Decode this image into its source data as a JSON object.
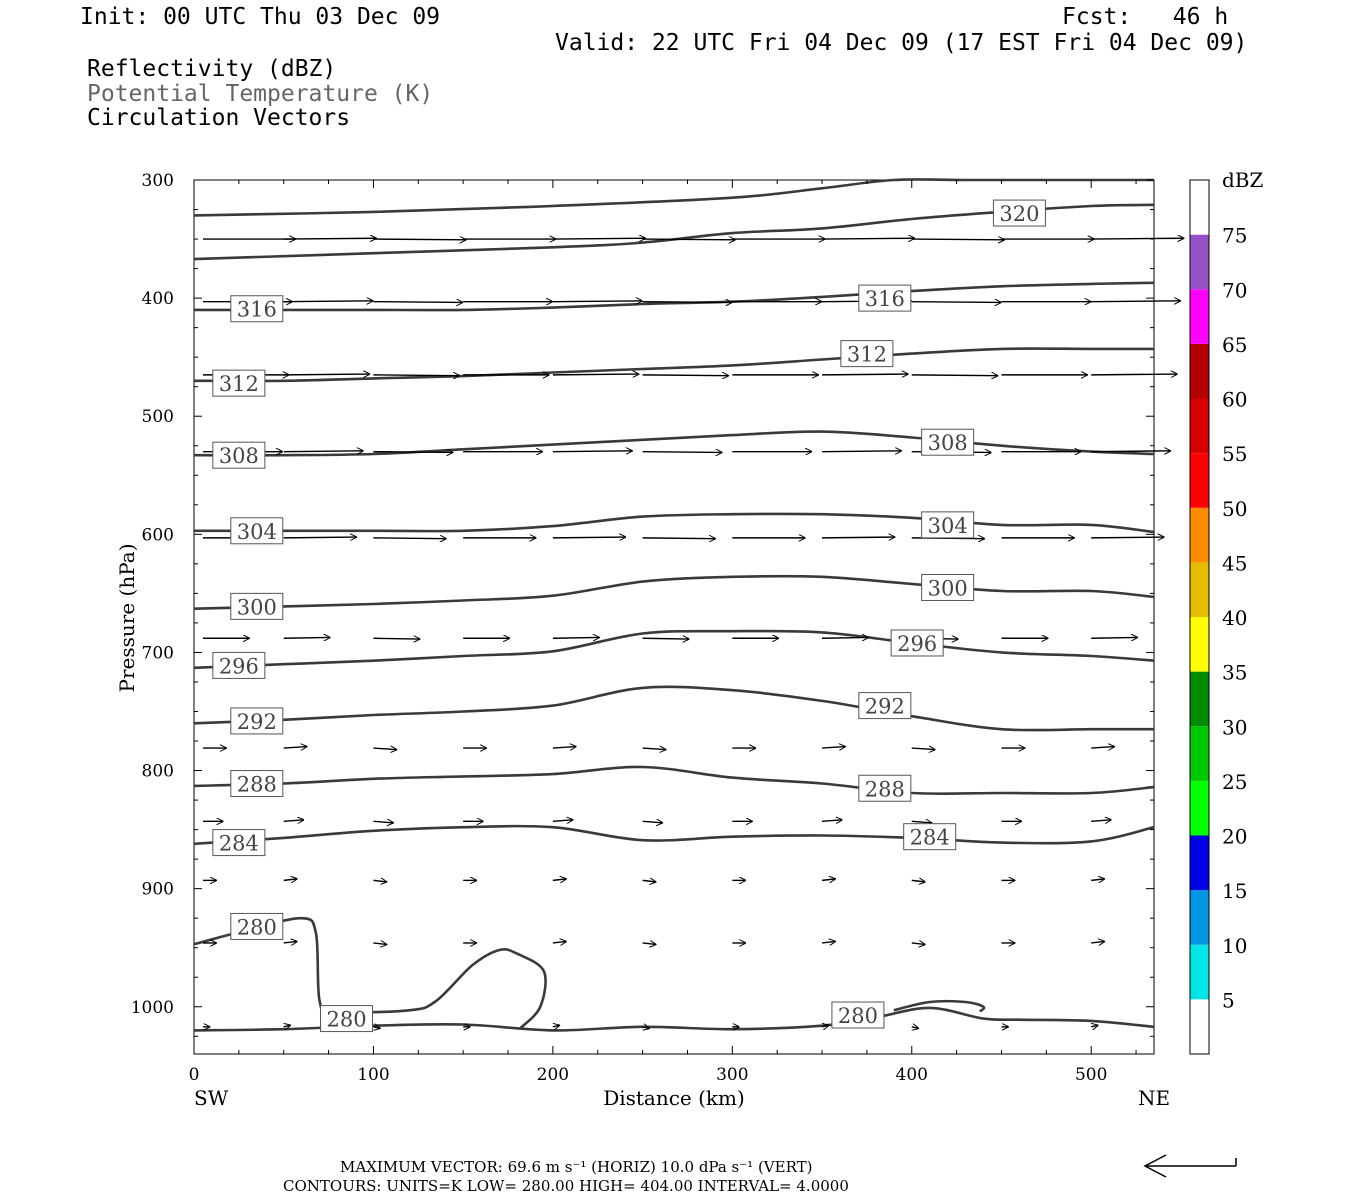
{
  "header": {
    "init": "Init: 00 UTC Thu 03 Dec 09",
    "fcst": "Fcst:   46 h",
    "valid": "Valid: 22 UTC Fri 04 Dec 09 (17 EST Fri 04 Dec 09)",
    "field1": "Reflectivity (dBZ)",
    "field2": "Potential Temperature (K)",
    "field3": "Circulation Vectors"
  },
  "footer": {
    "max_vector": "MAXIMUM VECTOR:  69.6 m s⁻¹ (HORIZ)        10.0 dPa s⁻¹ (VERT)",
    "contours": "CONTOURS:  UNITS=K  LOW=  280.00       HIGH=  404.00       INTERVAL=    4.0000"
  },
  "chart_data": {
    "type": "line",
    "xlabel": "Distance (km)",
    "ylabel": "Pressure (hPa)",
    "x_left_label": "SW",
    "x_right_label": "NE",
    "xlim": [
      0,
      535
    ],
    "ylim": [
      1040,
      300
    ],
    "x_ticks": [
      0,
      100,
      200,
      300,
      400,
      500
    ],
    "y_ticks": [
      300,
      400,
      500,
      600,
      700,
      800,
      900,
      1000
    ],
    "contour_color": "#3a3a3a",
    "colorbar": {
      "title": "dBZ",
      "labels": [
        "5",
        "10",
        "15",
        "20",
        "25",
        "30",
        "35",
        "40",
        "45",
        "50",
        "55",
        "60",
        "65",
        "70",
        "75"
      ],
      "colors": [
        "#ffffff",
        "#00e6e6",
        "#0096e6",
        "#0000e6",
        "#00ff00",
        "#00c800",
        "#008c00",
        "#ffff00",
        "#e6bc00",
        "#ff8c00",
        "#ff0000",
        "#d70000",
        "#b40000",
        "#ff00ff",
        "#9650c8",
        "#ffffff"
      ]
    },
    "series": [
      {
        "name": "320",
        "label_pos": [
          460,
          328
        ],
        "x": [
          0,
          100,
          200,
          300,
          350,
          390,
          430,
          480,
          535
        ],
        "y": [
          330,
          327,
          322,
          315,
          307,
          300,
          300,
          300,
          300
        ]
      },
      {
        "name": "320",
        "label_pos": [
          460,
          328
        ],
        "x": [
          0,
          100,
          200,
          250,
          300,
          350,
          400,
          450,
          500,
          535
        ],
        "y": [
          367,
          362,
          357,
          353,
          345,
          341,
          333,
          327,
          322,
          321
        ]
      },
      {
        "name": "316",
        "label_pos": [
          35,
          409
        ],
        "label_pos2": [
          385,
          400
        ],
        "x": [
          0,
          50,
          100,
          150,
          200,
          250,
          300,
          350,
          400,
          450,
          500,
          535
        ],
        "y": [
          410,
          410,
          410,
          410,
          408,
          405,
          403,
          399,
          394,
          390,
          388,
          387
        ]
      },
      {
        "name": "312",
        "label_pos": [
          25,
          472
        ],
        "label_pos2": [
          375,
          447
        ],
        "x": [
          0,
          50,
          100,
          150,
          200,
          250,
          300,
          350,
          400,
          450,
          500,
          535
        ],
        "y": [
          470,
          470,
          468,
          466,
          463,
          460,
          457,
          452,
          447,
          443,
          443,
          443
        ]
      },
      {
        "name": "308",
        "label_pos": [
          25,
          533
        ],
        "label_pos2": [
          420,
          522
        ],
        "x": [
          0,
          50,
          100,
          150,
          200,
          250,
          300,
          350,
          400,
          450,
          500,
          535
        ],
        "y": [
          533,
          533,
          532,
          528,
          524,
          520,
          516,
          513,
          518,
          525,
          530,
          532
        ]
      },
      {
        "name": "304",
        "label_pos": [
          35,
          597
        ],
        "label_pos2": [
          420,
          592
        ],
        "x": [
          0,
          50,
          100,
          150,
          200,
          250,
          300,
          350,
          400,
          450,
          500,
          535
        ],
        "y": [
          597,
          597,
          597,
          597,
          593,
          585,
          583,
          583,
          586,
          592,
          592,
          598
        ]
      },
      {
        "name": "300",
        "label_pos": [
          35,
          661
        ],
        "label_pos2": [
          420,
          645
        ],
        "x": [
          0,
          50,
          100,
          150,
          200,
          250,
          300,
          350,
          400,
          450,
          500,
          535
        ],
        "y": [
          663,
          661,
          659,
          656,
          652,
          640,
          636,
          636,
          642,
          648,
          648,
          653
        ]
      },
      {
        "name": "296",
        "label_pos": [
          25,
          711
        ],
        "label_pos2": [
          403,
          692
        ],
        "x": [
          0,
          50,
          100,
          150,
          200,
          250,
          300,
          350,
          400,
          450,
          500,
          535
        ],
        "y": [
          713,
          710,
          707,
          703,
          699,
          684,
          682,
          683,
          692,
          700,
          703,
          707
        ]
      },
      {
        "name": "292",
        "label_pos": [
          35,
          758
        ],
        "label_pos2": [
          385,
          745
        ],
        "x": [
          0,
          50,
          100,
          150,
          200,
          250,
          300,
          350,
          400,
          450,
          500,
          535
        ],
        "y": [
          760,
          757,
          753,
          750,
          745,
          730,
          732,
          741,
          754,
          765,
          765,
          765
        ]
      },
      {
        "name": "288",
        "label_pos": [
          35,
          811
        ],
        "label_pos2": [
          385,
          815
        ],
        "x": [
          0,
          50,
          100,
          150,
          200,
          250,
          300,
          350,
          400,
          450,
          500,
          535
        ],
        "y": [
          813,
          811,
          807,
          805,
          803,
          797,
          806,
          811,
          819,
          819,
          819,
          814
        ]
      },
      {
        "name": "284",
        "label_pos": [
          25,
          861
        ],
        "label_pos2": [
          410,
          856
        ],
        "x": [
          0,
          50,
          100,
          150,
          200,
          250,
          300,
          350,
          400,
          450,
          500,
          535
        ],
        "y": [
          862,
          857,
          851,
          848,
          848,
          859,
          856,
          855,
          857,
          861,
          860,
          848
        ]
      },
      {
        "name": "280",
        "label_pos": [
          35,
          932
        ],
        "label_pos2": [
          85,
          1010
        ],
        "x": [
          0,
          30,
          60,
          68,
          70,
          78,
          120,
          135,
          155,
          170,
          180,
          195,
          193,
          182
        ],
        "y": [
          947,
          935,
          925,
          938,
          995,
          1004,
          1003,
          995,
          965,
          952,
          955,
          970,
          1000,
          1018
        ]
      },
      {
        "name": "280",
        "label_pos": [
          370,
          1007
        ],
        "x": [
          0,
          50,
          100,
          150,
          200,
          250,
          300,
          350,
          380,
          410,
          440,
          460,
          500,
          535
        ],
        "y": [
          1020,
          1019,
          1016,
          1015,
          1020,
          1017,
          1019,
          1016,
          1009,
          1001,
          1010,
          1011,
          1012,
          1017
        ]
      },
      {
        "name": "280",
        "label_pos": [
          370,
          1007
        ],
        "x": [
          390,
          410,
          430,
          440,
          438
        ],
        "y": [
          1003,
          996,
          996,
          1000,
          1004
        ]
      }
    ],
    "vector_rows": [
      {
        "p": 350,
        "len": 0.28
      },
      {
        "p": 403,
        "len": 0.27
      },
      {
        "p": 465,
        "len": 0.26
      },
      {
        "p": 530,
        "len": 0.24
      },
      {
        "p": 603,
        "len": 0.22
      },
      {
        "p": 688,
        "len": 0.14
      },
      {
        "p": 781,
        "len": 0.07
      },
      {
        "p": 843,
        "len": 0.06
      },
      {
        "p": 893,
        "len": 0.04
      },
      {
        "p": 946,
        "len": 0.04
      },
      {
        "p": 1017,
        "len": 0.02
      }
    ],
    "vector_x": [
      5,
      50,
      100,
      150,
      200,
      250,
      300,
      350,
      400,
      450,
      500
    ]
  }
}
